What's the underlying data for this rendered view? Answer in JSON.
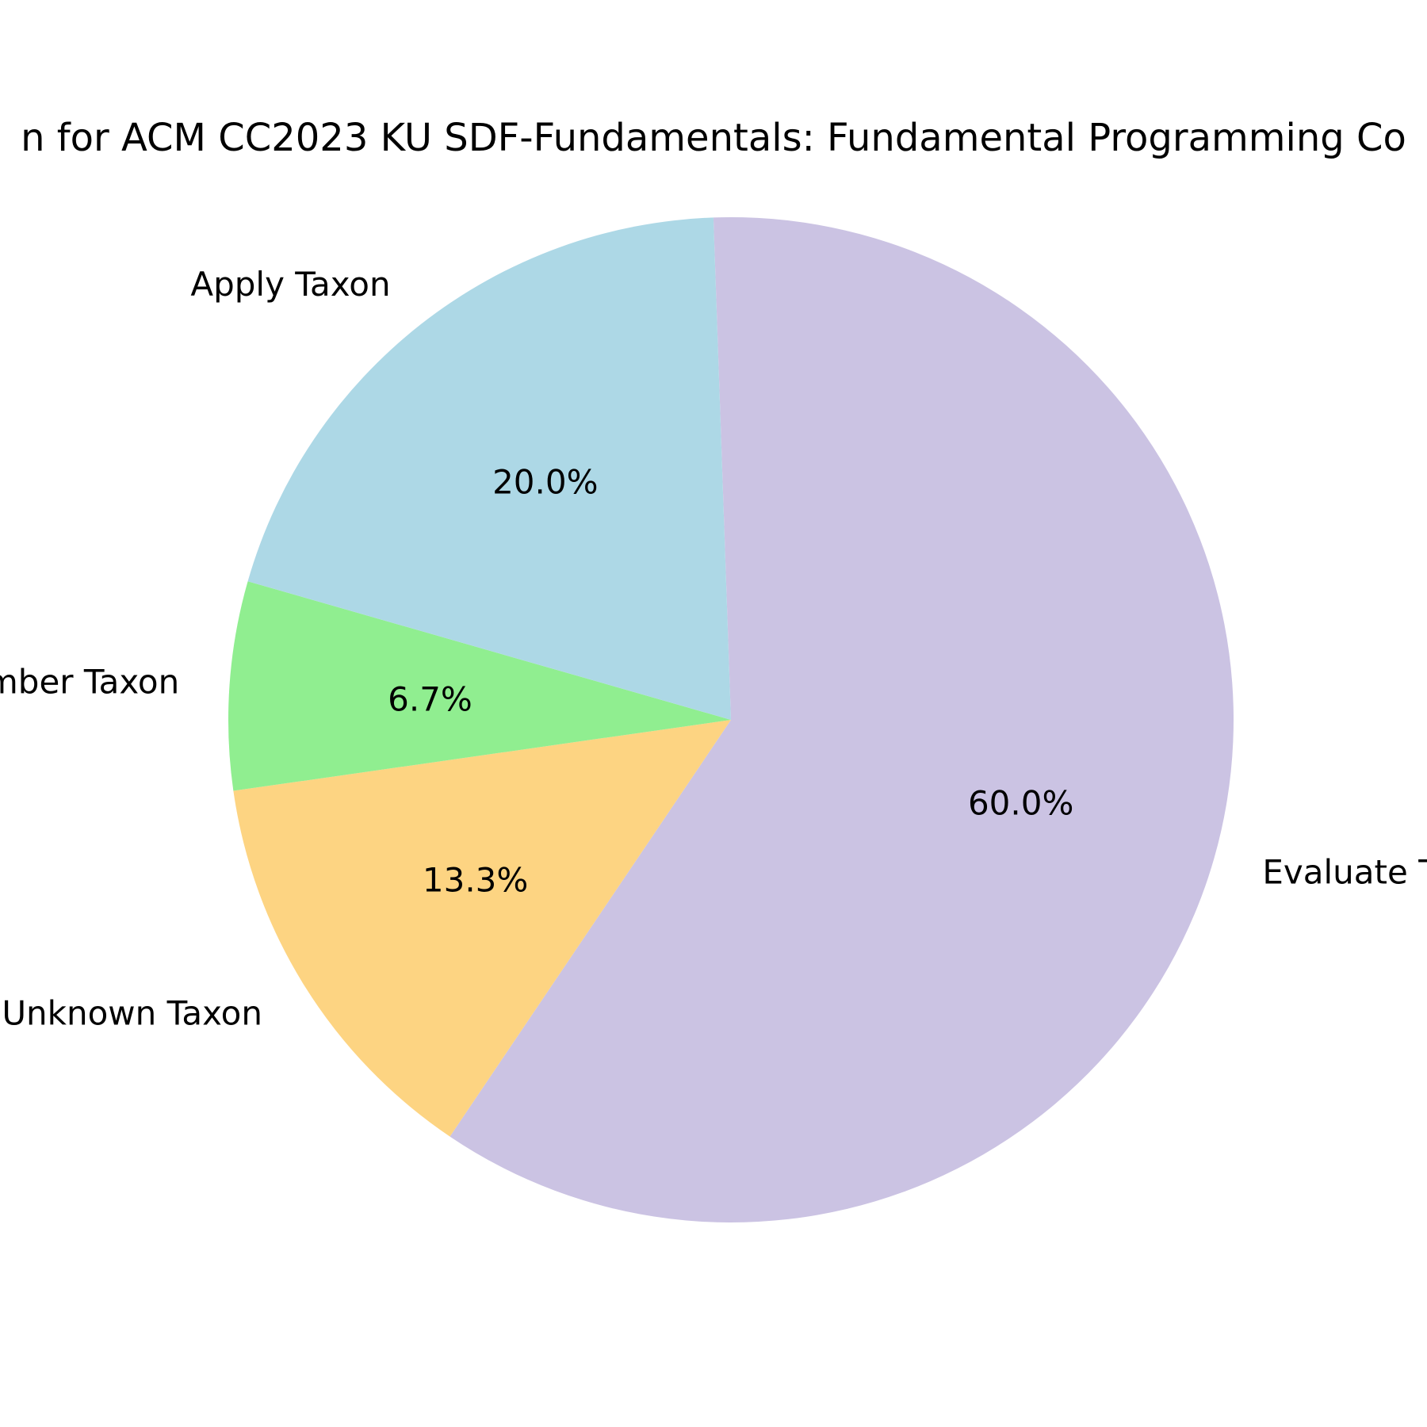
{
  "chart_data": {
    "type": "pie",
    "title": "n for ACM CC2023 KU SDF-Fundamentals: Fundamental Programming Co",
    "slices": [
      {
        "label": "Evaluate T",
        "value": 60.0,
        "pct_label": "60.0%",
        "color": "#cbc3e3"
      },
      {
        "label": "Unknown Taxon",
        "value": 13.3,
        "pct_label": "13.3%",
        "color": "#fdd482"
      },
      {
        "label": "member Taxon",
        "value": 6.7,
        "pct_label": "6.7%",
        "color": "#90ee90"
      },
      {
        "label": "Apply Taxon",
        "value": 20.0,
        "pct_label": "20.0%",
        "color": "#add8e6"
      }
    ],
    "legend": "none"
  }
}
